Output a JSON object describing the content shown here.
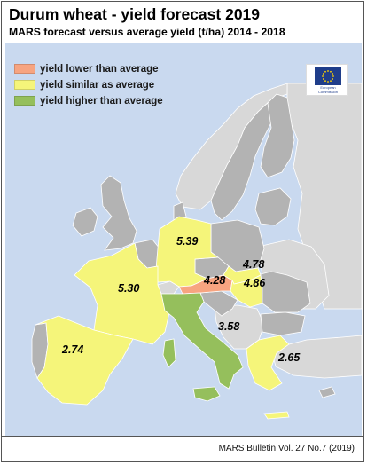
{
  "title": "Durum wheat - yield forecast 2019",
  "subtitle": "MARS forecast versus average yield (t/ha) 2014 - 2018",
  "legend": [
    {
      "label": "yield lower than average",
      "color": "#f7a480"
    },
    {
      "label": "yield similar as average",
      "color": "#f5f57a"
    },
    {
      "label": "yield higher than average",
      "color": "#95bf5c"
    }
  ],
  "colors": {
    "sea": "#c9d9ef",
    "non_eu": "#d8d8d8",
    "eu_no_data": "#b3b3b3",
    "borders": "#ffffff"
  },
  "logo": {
    "icon": "eu-flag-icon",
    "line1": "European",
    "line2": "Commission"
  },
  "countries": [
    {
      "name": "France",
      "value": "5.30",
      "category": "similar"
    },
    {
      "name": "Germany",
      "value": "5.39",
      "category": "similar"
    },
    {
      "name": "Austria",
      "value": "4.28",
      "category": "lower"
    },
    {
      "name": "Slovakia",
      "value": "4.78",
      "category": "similar"
    },
    {
      "name": "Hungary",
      "value": "4.86",
      "category": "similar"
    },
    {
      "name": "Italy",
      "value": "3.58",
      "category": "higher"
    },
    {
      "name": "Spain",
      "value": "2.74",
      "category": "similar"
    },
    {
      "name": "Greece",
      "value": "2.65",
      "category": "similar"
    }
  ],
  "footer": "MARS Bulletin Vol. 27 No.7 (2019)"
}
